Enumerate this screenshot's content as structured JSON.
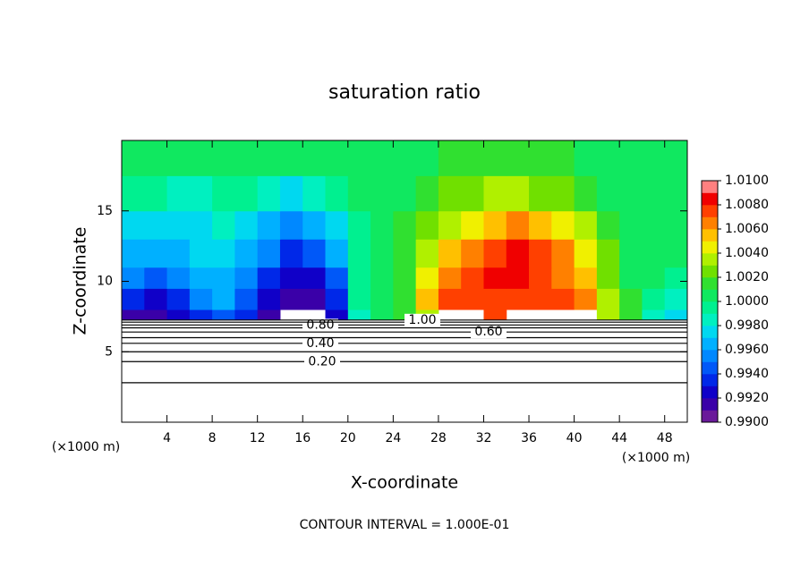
{
  "chart_data": {
    "type": "contour",
    "title": "saturation ratio",
    "x_label": "X-coordinate",
    "y_label": "Z-coordinate",
    "y_unit": "(×1000 m)",
    "x_unit": "(×1000 m)",
    "footer": "CONTOUR INTERVAL = 1.000E-01",
    "xlim": [
      0,
      50
    ],
    "xticks": [
      4,
      8,
      12,
      16,
      20,
      24,
      28,
      32,
      36,
      40,
      44,
      48
    ],
    "ylim": [
      0,
      20
    ],
    "yticks": [
      5,
      10,
      15
    ],
    "x_bins": [
      0,
      2,
      4,
      6,
      8,
      10,
      12,
      14,
      16,
      18,
      20,
      22,
      24,
      26,
      28,
      30,
      32,
      34,
      36,
      38,
      40,
      42,
      44,
      46,
      48,
      50
    ],
    "z_bins": [
      7.3,
      8,
      9.5,
      11,
      13,
      15,
      17.5,
      20
    ],
    "values": [
      [
        0.9915,
        0.9915,
        0.9925,
        0.9935,
        0.9945,
        0.9935,
        0.9915,
        null,
        null,
        0.9925,
        0.9985,
        1.0005,
        1.0015,
        1.0035,
        null,
        null,
        1.0075,
        null,
        null,
        null,
        null,
        1.0035,
        1.0015,
        0.9985,
        0.9975
      ],
      [
        0.9935,
        0.9925,
        0.9935,
        0.9955,
        0.9965,
        0.9945,
        0.9925,
        0.9915,
        0.9915,
        0.9935,
        0.9995,
        1.0005,
        1.0015,
        1.0055,
        1.0075,
        1.0075,
        1.0075,
        1.0075,
        1.0075,
        1.0075,
        1.0065,
        1.0035,
        1.0015,
        0.9995,
        0.9985
      ],
      [
        0.9955,
        0.9945,
        0.9955,
        0.9965,
        0.9965,
        0.9955,
        0.9935,
        0.9925,
        0.9925,
        0.9945,
        0.9995,
        1.0005,
        1.0015,
        1.0045,
        1.0065,
        1.0075,
        1.0085,
        1.0085,
        1.0075,
        1.0065,
        1.0055,
        1.0025,
        1.0005,
        1.0005,
        0.9995
      ],
      [
        0.9965,
        0.9965,
        0.9965,
        0.9975,
        0.9975,
        0.9965,
        0.9955,
        0.9935,
        0.9945,
        0.9965,
        0.9995,
        1.0005,
        1.0015,
        1.0035,
        1.0055,
        1.0065,
        1.0075,
        1.0085,
        1.0075,
        1.0065,
        1.0045,
        1.0025,
        1.0005,
        1.0005,
        1.0005
      ],
      [
        0.9975,
        0.9975,
        0.9975,
        0.9975,
        0.9985,
        0.9975,
        0.9965,
        0.9955,
        0.9965,
        0.9975,
        0.9995,
        1.0005,
        1.0015,
        1.0025,
        1.0035,
        1.0045,
        1.0055,
        1.0065,
        1.0055,
        1.0045,
        1.0035,
        1.0015,
        1.0005,
        1.0005,
        1.0005
      ],
      [
        0.9995,
        0.9995,
        0.9985,
        0.9985,
        0.9995,
        0.9995,
        0.9985,
        0.9975,
        0.9985,
        0.9995,
        1.0005,
        1.0005,
        1.0005,
        1.0015,
        1.0025,
        1.0025,
        1.0035,
        1.0035,
        1.0025,
        1.0025,
        1.0015,
        1.0005,
        1.0005,
        1.0005,
        1.0005
      ],
      [
        1.0005,
        1.0005,
        1.0005,
        1.0005,
        1.0005,
        1.0005,
        1.0005,
        1.0005,
        1.0005,
        1.0005,
        1.0005,
        1.0005,
        1.0005,
        1.0005,
        1.0015,
        1.0015,
        1.0015,
        1.0015,
        1.0015,
        1.0015,
        1.0005,
        1.0005,
        1.0005,
        1.0005,
        1.0005
      ]
    ],
    "contours": {
      "levels": [
        0.1,
        0.2,
        0.3,
        0.4,
        0.5,
        0.6,
        0.7,
        0.8,
        0.9,
        1.0
      ],
      "heights": [
        2.8,
        4.3,
        5.0,
        5.6,
        6.0,
        6.4,
        6.7,
        6.9,
        7.1,
        7.25
      ],
      "value_labels": [
        null,
        "0.20",
        null,
        "0.40",
        null,
        "0.60",
        null,
        "0.80",
        null,
        "1.00"
      ]
    },
    "colorbar": {
      "levels": [
        0.99,
        0.991,
        0.992,
        0.993,
        0.994,
        0.995,
        0.996,
        0.997,
        0.998,
        0.999,
        1.0,
        1.001,
        1.002,
        1.003,
        1.004,
        1.005,
        1.006,
        1.007,
        1.008,
        1.009,
        1.01
      ],
      "colors": [
        "#6a1a9a",
        "#3a00a8",
        "#1000c8",
        "#0028e8",
        "#0058f8",
        "#0088ff",
        "#00b0ff",
        "#00d8f0",
        "#00f0c0",
        "#00f090",
        "#10e860",
        "#30e030",
        "#70e000",
        "#b0f000",
        "#f0f000",
        "#ffc000",
        "#ff8000",
        "#ff4000",
        "#f00000",
        "#ff8080"
      ],
      "ticks": [
        {
          "value": 0.99,
          "label": "0.9900"
        },
        {
          "value": 0.992,
          "label": "0.9920"
        },
        {
          "value": 0.994,
          "label": "0.9940"
        },
        {
          "value": 0.996,
          "label": "0.9960"
        },
        {
          "value": 0.998,
          "label": "0.9980"
        },
        {
          "value": 1.0,
          "label": "1.0000"
        },
        {
          "value": 1.002,
          "label": "1.0020"
        },
        {
          "value": 1.004,
          "label": "1.0040"
        },
        {
          "value": 1.006,
          "label": "1.0060"
        },
        {
          "value": 1.008,
          "label": "1.0080"
        },
        {
          "value": 1.01,
          "label": "1.0100"
        }
      ]
    }
  }
}
